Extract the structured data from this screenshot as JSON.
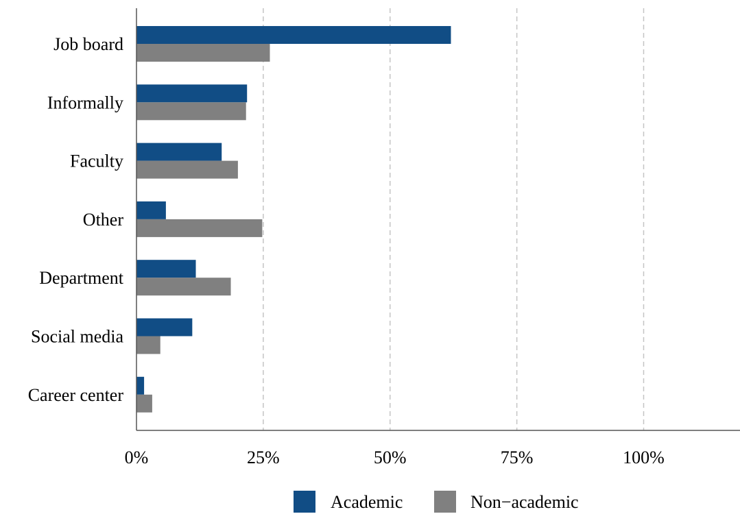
{
  "chart_data": {
    "type": "bar",
    "orientation": "horizontal",
    "categories": [
      "Job board",
      "Informally",
      "Faculty",
      "Other",
      "Department",
      "Social media",
      "Career center"
    ],
    "series": [
      {
        "name": "Academic",
        "color": "#114d85",
        "values": [
          62,
          21.8,
          16.8,
          5.8,
          11.7,
          11,
          1.5
        ]
      },
      {
        "name": "Non−academic",
        "color": "#808080",
        "values": [
          26.3,
          21.6,
          20,
          24.8,
          18.6,
          4.7,
          3.1
        ]
      }
    ],
    "x_ticks": [
      {
        "value": 0,
        "label": "0%"
      },
      {
        "value": 25,
        "label": "25%"
      },
      {
        "value": 50,
        "label": "50%"
      },
      {
        "value": 75,
        "label": "75%"
      },
      {
        "value": 100,
        "label": "100%"
      }
    ],
    "xlim": [
      0,
      119
    ],
    "grid": "vertical dashed",
    "legend_position": "bottom",
    "title": "",
    "xlabel": "",
    "ylabel": ""
  }
}
